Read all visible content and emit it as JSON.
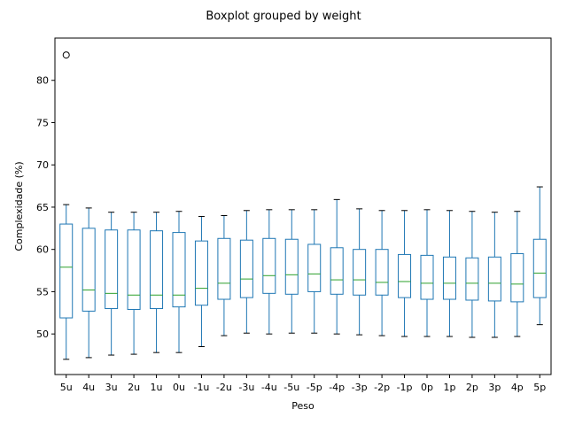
{
  "chart_data": {
    "type": "boxplot",
    "title": "Boxplot grouped by weight",
    "xlabel": "Peso",
    "ylabel": "Complexidade (%)",
    "ylim": [
      45.2,
      85.0
    ],
    "yticks": [
      50,
      55,
      60,
      65,
      70,
      75,
      80
    ],
    "grid": false,
    "box_color": "#1f77b4",
    "median_color": "#2ca02c",
    "whisker_cap_color": "#000000",
    "categories": [
      "5u",
      "4u",
      "3u",
      "2u",
      "1u",
      "0u",
      "-1u",
      "-2u",
      "-3u",
      "-4u",
      "-5u",
      "-5p",
      "-4p",
      "-3p",
      "-2p",
      "-1p",
      "0p",
      "1p",
      "2p",
      "3p",
      "4p",
      "5p"
    ],
    "boxes": [
      {
        "whislo": 47.0,
        "q1": 51.9,
        "med": 57.9,
        "q3": 63.0,
        "whishi": 65.3,
        "fliers": [
          83.0
        ]
      },
      {
        "whislo": 47.2,
        "q1": 52.7,
        "med": 55.2,
        "q3": 62.5,
        "whishi": 64.9,
        "fliers": []
      },
      {
        "whislo": 47.5,
        "q1": 53.0,
        "med": 54.8,
        "q3": 62.3,
        "whishi": 64.4,
        "fliers": []
      },
      {
        "whislo": 47.6,
        "q1": 52.9,
        "med": 54.6,
        "q3": 62.3,
        "whishi": 64.4,
        "fliers": []
      },
      {
        "whislo": 47.8,
        "q1": 53.0,
        "med": 54.6,
        "q3": 62.2,
        "whishi": 64.4,
        "fliers": []
      },
      {
        "whislo": 47.8,
        "q1": 53.2,
        "med": 54.6,
        "q3": 62.0,
        "whishi": 64.5,
        "fliers": []
      },
      {
        "whislo": 48.5,
        "q1": 53.4,
        "med": 55.4,
        "q3": 61.0,
        "whishi": 63.9,
        "fliers": []
      },
      {
        "whislo": 49.8,
        "q1": 54.1,
        "med": 56.0,
        "q3": 61.3,
        "whishi": 64.0,
        "fliers": []
      },
      {
        "whislo": 50.1,
        "q1": 54.3,
        "med": 56.5,
        "q3": 61.1,
        "whishi": 64.6,
        "fliers": []
      },
      {
        "whislo": 50.0,
        "q1": 54.8,
        "med": 56.9,
        "q3": 61.3,
        "whishi": 64.7,
        "fliers": []
      },
      {
        "whislo": 50.1,
        "q1": 54.7,
        "med": 57.0,
        "q3": 61.2,
        "whishi": 64.7,
        "fliers": []
      },
      {
        "whislo": 50.1,
        "q1": 55.0,
        "med": 57.1,
        "q3": 60.6,
        "whishi": 64.7,
        "fliers": []
      },
      {
        "whislo": 50.0,
        "q1": 54.7,
        "med": 56.4,
        "q3": 60.2,
        "whishi": 65.9,
        "fliers": []
      },
      {
        "whislo": 49.9,
        "q1": 54.6,
        "med": 56.4,
        "q3": 60.0,
        "whishi": 64.8,
        "fliers": []
      },
      {
        "whislo": 49.8,
        "q1": 54.6,
        "med": 56.1,
        "q3": 60.0,
        "whishi": 64.6,
        "fliers": []
      },
      {
        "whislo": 49.7,
        "q1": 54.3,
        "med": 56.2,
        "q3": 59.4,
        "whishi": 64.6,
        "fliers": []
      },
      {
        "whislo": 49.7,
        "q1": 54.1,
        "med": 56.0,
        "q3": 59.3,
        "whishi": 64.7,
        "fliers": []
      },
      {
        "whislo": 49.7,
        "q1": 54.1,
        "med": 56.0,
        "q3": 59.1,
        "whishi": 64.6,
        "fliers": []
      },
      {
        "whislo": 49.6,
        "q1": 54.0,
        "med": 56.0,
        "q3": 59.0,
        "whishi": 64.5,
        "fliers": []
      },
      {
        "whislo": 49.6,
        "q1": 53.9,
        "med": 56.0,
        "q3": 59.1,
        "whishi": 64.4,
        "fliers": []
      },
      {
        "whislo": 49.7,
        "q1": 53.8,
        "med": 55.9,
        "q3": 59.5,
        "whishi": 64.5,
        "fliers": []
      },
      {
        "whislo": 51.1,
        "q1": 54.3,
        "med": 57.2,
        "q3": 61.2,
        "whishi": 67.4,
        "fliers": []
      }
    ]
  }
}
